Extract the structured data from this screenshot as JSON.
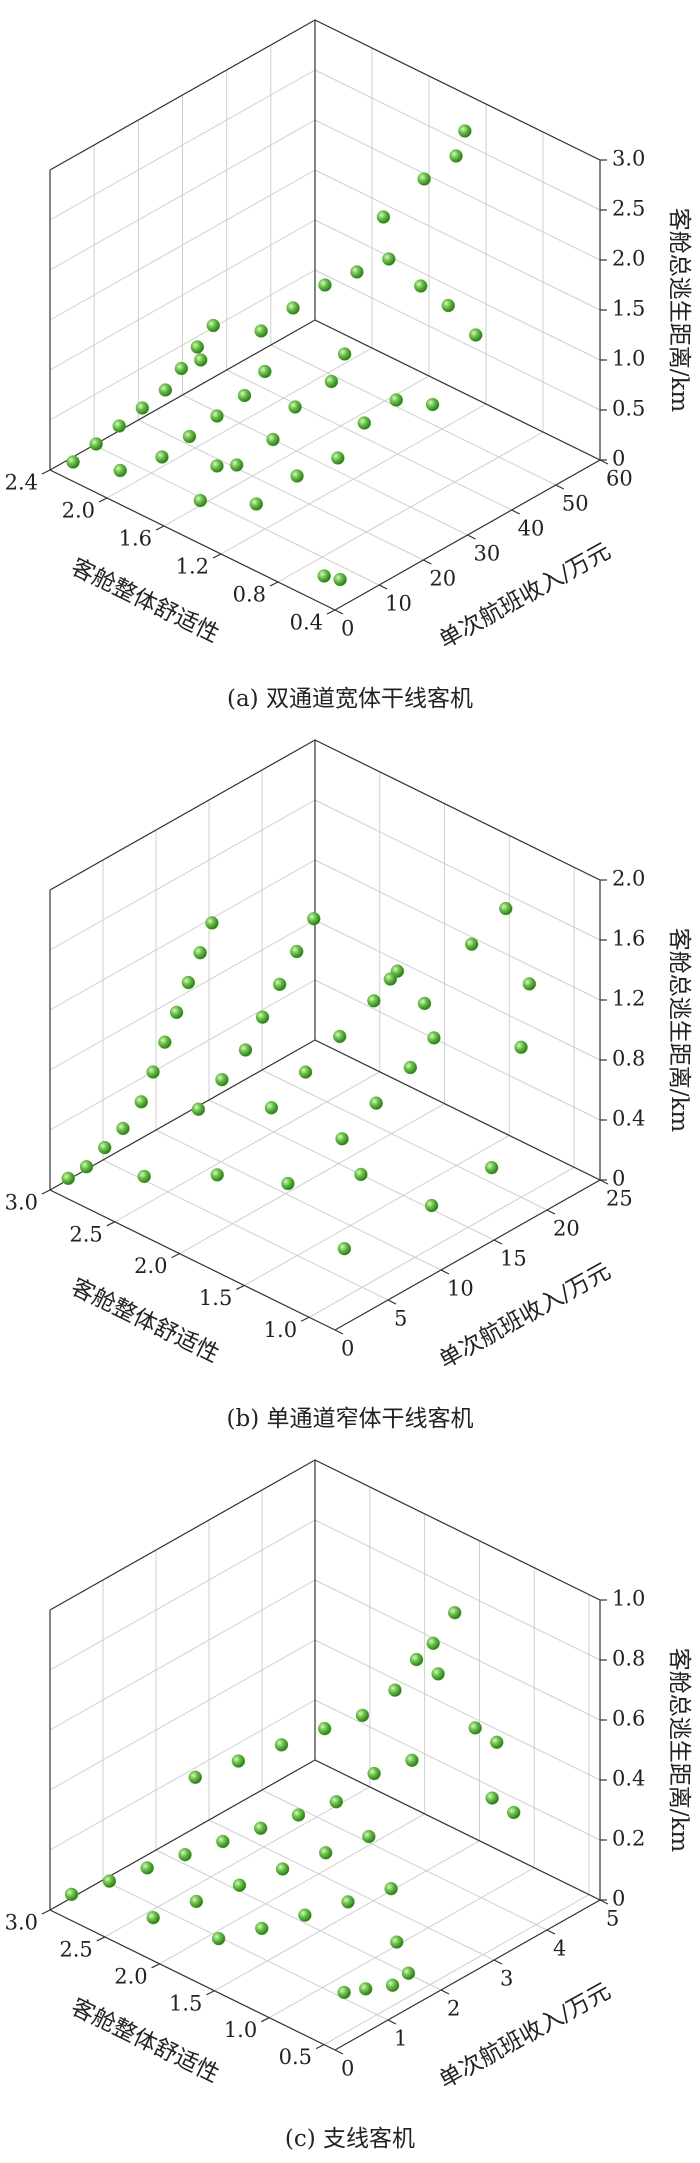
{
  "chart_data": [
    {
      "type": "scatter3d",
      "caption": "(a) 双通道宽体干线客机",
      "xlabel": "单次航班收入/万元",
      "ylabel": "客舱整体舒适性",
      "zlabel": "客舱总逃生距离/km",
      "xlim": [
        0,
        60
      ],
      "xticks": [
        0,
        10,
        20,
        30,
        40,
        50,
        60
      ],
      "ylim": [
        0.4,
        2.4
      ],
      "yticks": [
        2.4,
        {
          "value": 2,
          "label": "2.0"
        },
        1.6,
        1.2,
        0.8,
        0.4
      ],
      "zlim": [
        0,
        3
      ],
      "zticks": [
        0,
        0.5,
        {
          "value": 1,
          "label": "1.0"
        },
        1.5,
        {
          "value": 2,
          "label": "2.0"
        },
        2.5,
        {
          "value": 3,
          "label": "3.0"
        }
      ],
      "grid": true,
      "color": "#5cb83a",
      "x": [
        2,
        4,
        6,
        8,
        10,
        12,
        14,
        16,
        3,
        6,
        9,
        12,
        15,
        18,
        5,
        10,
        15,
        20,
        25,
        28,
        8,
        14,
        20,
        26,
        30,
        22,
        26,
        30,
        34,
        38,
        42,
        45,
        40,
        46,
        50,
        52,
        48,
        35,
        4,
        6,
        12,
        18
      ],
      "y": [
        2.3,
        2.2,
        2.1,
        2.0,
        1.9,
        1.85,
        1.8,
        1.75,
        2.0,
        1.8,
        1.7,
        1.6,
        1.5,
        1.45,
        1.5,
        1.4,
        1.3,
        1.3,
        1.2,
        1.2,
        1.2,
        1.1,
        1.0,
        1.0,
        0.9,
        1.6,
        1.5,
        1.4,
        1.3,
        1.2,
        1.1,
        1.0,
        1.3,
        1.2,
        1.1,
        1.1,
        0.9,
        0.8,
        0.6,
        0.55,
        1.6,
        1.9
      ],
      "z": [
        0.1,
        0.3,
        0.5,
        0.7,
        0.9,
        1.1,
        1.3,
        1.5,
        0.2,
        0.4,
        0.6,
        0.8,
        1.0,
        1.2,
        0.2,
        0.5,
        0.7,
        0.9,
        1.1,
        1.3,
        0.3,
        0.5,
        0.6,
        0.8,
        1.0,
        1.4,
        1.6,
        1.8,
        1.9,
        2.0,
        1.7,
        1.5,
        2.3,
        2.6,
        2.8,
        3.0,
        1.2,
        0.9,
        0.1,
        0.05,
        0.3,
        1.0
      ]
    },
    {
      "type": "scatter3d",
      "caption": "(b) 单通道窄体干线客机",
      "xlabel": "单次航班收入/万元",
      "ylabel": "客舱整体舒适性",
      "zlabel": "客舱总逃生距离/km",
      "xlim": [
        0,
        25
      ],
      "xticks": [
        0,
        5,
        10,
        15,
        20,
        25
      ],
      "ylim": [
        0.8,
        3.0
      ],
      "yticks": [
        {
          "value": 3,
          "label": "3.0"
        },
        2.5,
        {
          "value": 2,
          "label": "2.0"
        },
        1.5,
        {
          "value": 1,
          "label": "1.0"
        }
      ],
      "zlim": [
        0,
        2
      ],
      "zticks": [
        0,
        0.4,
        0.8,
        1.2,
        1.6,
        {
          "value": 2,
          "label": "2.0"
        }
      ],
      "grid": true,
      "color": "#5cb83a",
      "x": [
        0.5,
        1,
        1.5,
        2,
        2.5,
        3,
        3.5,
        4,
        4.5,
        5,
        5.5,
        3,
        4,
        5,
        6,
        7,
        8,
        9,
        5,
        7,
        9,
        11,
        12,
        8,
        10,
        12,
        13,
        15,
        17,
        19,
        21,
        22,
        20,
        4,
        6,
        9,
        11,
        14,
        7,
        16
      ],
      "y": [
        2.9,
        2.8,
        2.7,
        2.6,
        2.5,
        2.45,
        2.4,
        2.35,
        2.3,
        2.25,
        2.2,
        2.1,
        2.0,
        1.9,
        1.85,
        1.8,
        1.75,
        1.7,
        1.7,
        1.6,
        1.5,
        1.4,
        1.3,
        1.4,
        1.3,
        1.2,
        1.1,
        1.6,
        1.5,
        1.3,
        1.2,
        1.1,
        1.0,
        2.6,
        2.2,
        1.9,
        1.5,
        1.2,
        1.3,
        0.9
      ],
      "z": [
        0.1,
        0.2,
        0.35,
        0.5,
        0.7,
        0.9,
        1.1,
        1.3,
        1.5,
        1.7,
        1.9,
        0.8,
        1.0,
        1.2,
        1.4,
        1.6,
        1.8,
        2.0,
        0.9,
        1.1,
        1.3,
        1.5,
        1.7,
        0.7,
        0.9,
        1.1,
        1.3,
        1.4,
        1.2,
        1.6,
        1.8,
        1.3,
        1.0,
        0.1,
        0.2,
        0.15,
        0.3,
        0.1,
        0.05,
        0.4
      ]
    },
    {
      "type": "scatter3d",
      "caption": "(c) 支线客机",
      "xlabel": "单次航班收入/万元",
      "ylabel": "客舱整体舒适性",
      "zlabel": "客舱总逃生距离/km",
      "xlim": [
        0,
        5
      ],
      "xticks": [
        0,
        1,
        2,
        3,
        4,
        5
      ],
      "ylim": [
        0.4,
        3.0
      ],
      "yticks": [
        {
          "value": 3,
          "label": "3.0"
        },
        2.5,
        {
          "value": 2,
          "label": "2.0"
        },
        1.5,
        {
          "value": 1,
          "label": "1.0"
        },
        0.5
      ],
      "zlim": [
        0,
        1
      ],
      "zticks": [
        0,
        0.2,
        0.4,
        0.6,
        0.8,
        {
          "value": 1,
          "label": "1.0"
        }
      ],
      "grid": true,
      "color": "#5cb83a",
      "x": [
        0.2,
        0.5,
        0.8,
        1.1,
        1.4,
        1.7,
        2.0,
        2.3,
        2.6,
        2.9,
        0.5,
        0.9,
        1.3,
        1.7,
        2.1,
        2.5,
        0.7,
        1.1,
        1.5,
        1.9,
        2.3,
        1.5,
        1.9,
        2.3,
        2.7,
        3.0,
        3.2,
        3.4,
        3.6,
        3.3,
        3.5,
        4.3,
        4.5,
        4.0,
        4.2,
        1.0,
        1.2,
        1.5,
        1.8,
        2.2
      ],
      "y": [
        2.9,
        2.7,
        2.5,
        2.3,
        2.1,
        1.9,
        1.7,
        1.5,
        1.3,
        1.1,
        2.3,
        2.1,
        1.9,
        1.7,
        1.5,
        1.3,
        1.8,
        1.6,
        1.4,
        1.2,
        1.0,
        2.4,
        2.2,
        2.0,
        1.8,
        1.6,
        1.4,
        1.3,
        1.2,
        1.1,
        1.0,
        1.2,
        1.1,
        0.9,
        0.8,
        0.8,
        0.7,
        0.6,
        0.6,
        0.9
      ],
      "z": [
        0.05,
        0.1,
        0.15,
        0.2,
        0.25,
        0.3,
        0.35,
        0.4,
        0.5,
        0.55,
        0.05,
        0.1,
        0.15,
        0.2,
        0.25,
        0.3,
        0.05,
        0.08,
        0.12,
        0.16,
        0.2,
        0.4,
        0.45,
        0.5,
        0.55,
        0.6,
        0.7,
        0.8,
        0.75,
        0.9,
        1.0,
        0.5,
        0.45,
        0.35,
        0.3,
        0.02,
        0.03,
        0.03,
        0.04,
        0.05
      ]
    }
  ]
}
